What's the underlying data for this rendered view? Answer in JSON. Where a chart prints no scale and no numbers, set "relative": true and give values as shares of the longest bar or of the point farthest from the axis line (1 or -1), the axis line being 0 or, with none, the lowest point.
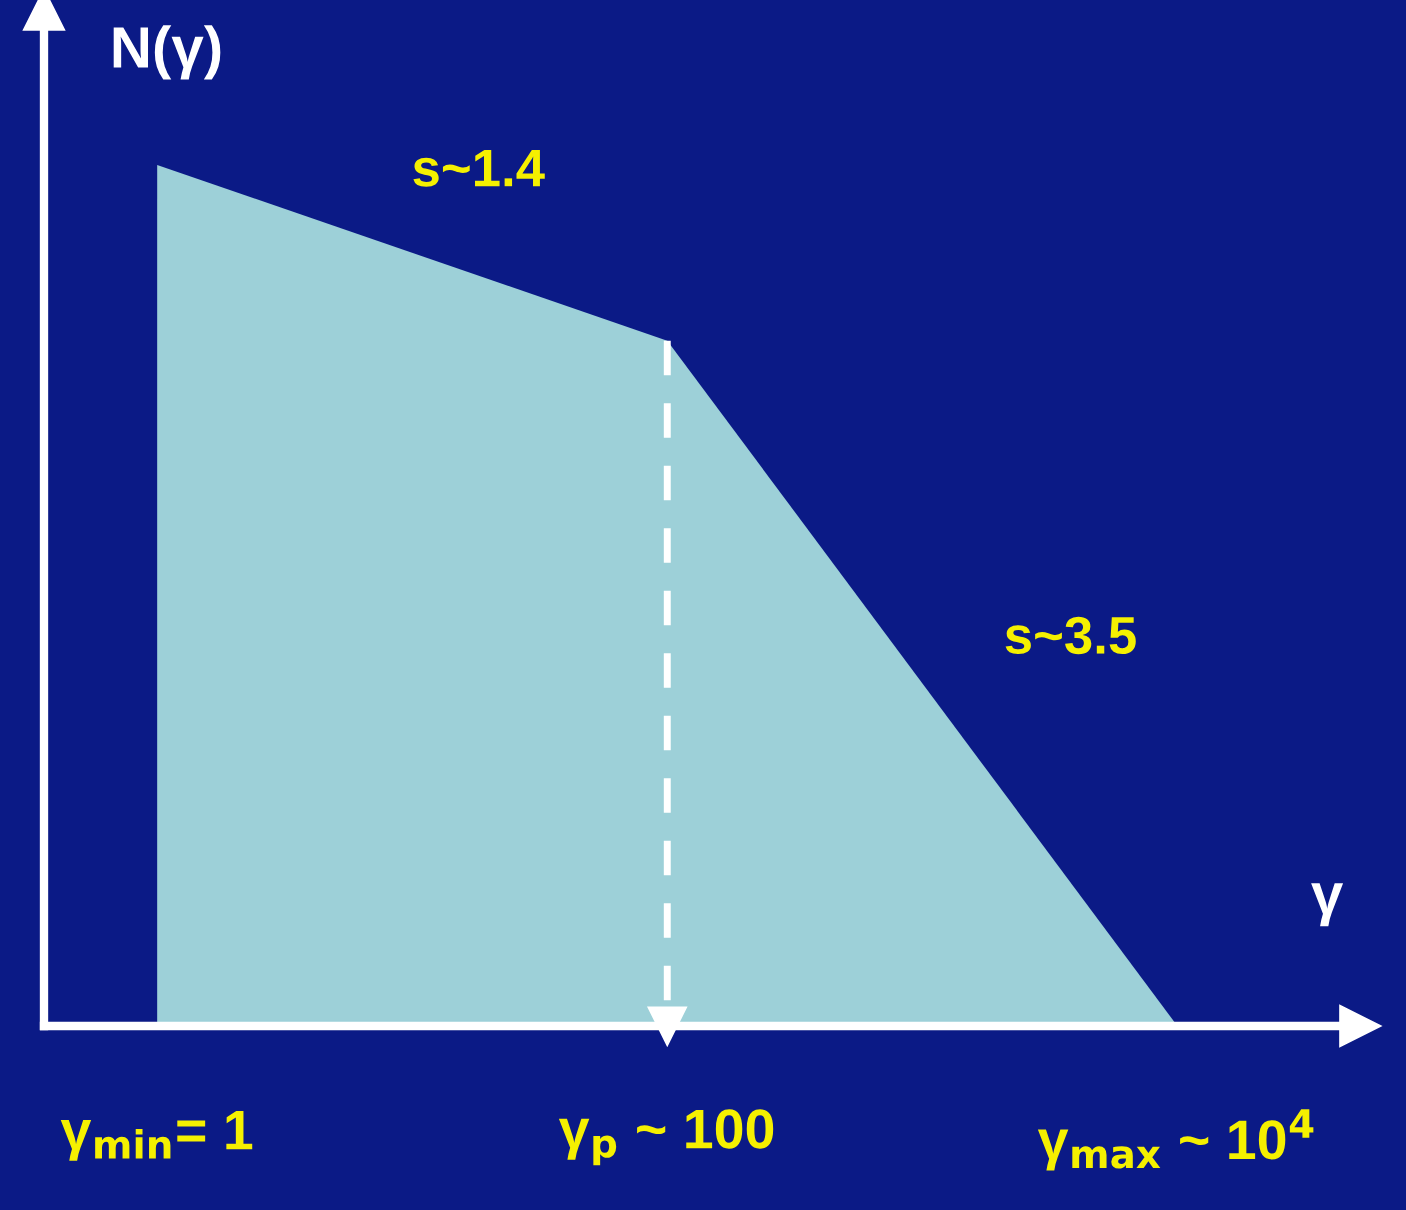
{
  "chart_data": {
    "type": "area",
    "relative": true,
    "log": "x",
    "xlabel": "γ",
    "ylabel": "N(γ)",
    "tick_labels": "x",
    "x": [
      1,
      100,
      10000
    ],
    "xlim": [
      0.36,
      52000
    ],
    "xticks": [
      {
        "value": 1,
        "label": "γ$_{min}$= 1"
      },
      {
        "value": 100,
        "label": "γ$_{p}$ ~ 100"
      },
      {
        "value": 10000,
        "label": "γ$_{max}$ ~ 10$^{4}$"
      }
    ],
    "series": [
      {
        "color": "#9dd0d8",
        "values": [
          1,
          0.796,
          0
        ]
      }
    ],
    "ref_lines": [
      {
        "axis": "x",
        "value": 100,
        "color": "#ffffff",
        "line_style": "dashed"
      }
    ],
    "annotations": [
      "s~1.4",
      "s~3.5"
    ],
    "legend": false
  }
}
